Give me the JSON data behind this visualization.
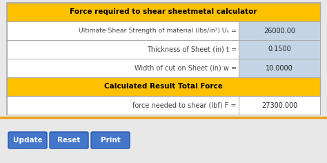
{
  "title": "Force required to shear sheetmetal calculator",
  "section2_title": "Calculated Result Total Force",
  "rows": [
    {
      "label": "Ultimate Shear Strength of material (lbs/in²) Uₛ =",
      "value": "26000.00"
    },
    {
      "label": "Thickness of Sheet (in) t =",
      "value": "0.1500"
    },
    {
      "label": "Width of cut on Sheet (in) w =",
      "value": "10.0000"
    }
  ],
  "result_row": {
    "label": "force needed to shear (lbf) F =",
    "value": "27300.000"
  },
  "buttons": [
    "Update",
    "Reset",
    "Print"
  ],
  "header_bg": "#FFC000",
  "header_text": "#000000",
  "row_bg": "#FFFFFF",
  "input_bg": "#C5D5E5",
  "outer_bg": "#E8E8E8",
  "separator_color": "#F0A020",
  "table_border": "#AAAAAA",
  "button_color": "#4477CC",
  "button_text": "#FFFFFF",
  "label_color": "#444444",
  "value_color": "#222222",
  "font_size": 7.0,
  "title_font_size": 7.5,
  "btn_font_size": 7.5
}
